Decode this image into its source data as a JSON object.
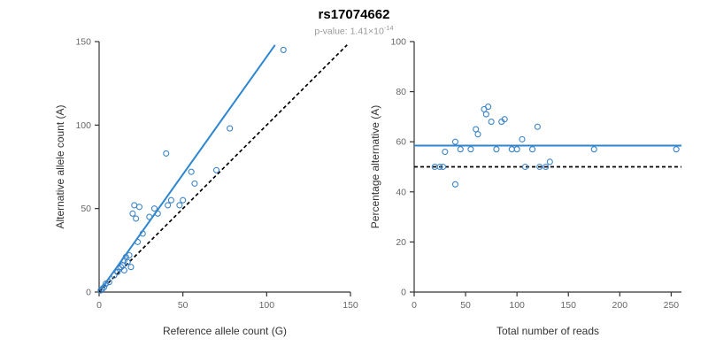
{
  "header": {
    "title": "rs17074662",
    "subtitle_base": "p-value: 1.41×10",
    "subtitle_exponent": "-14"
  },
  "colors": {
    "point": "#3d85c8",
    "fit_line": "#2e86d1",
    "identity_line": "#000000",
    "axis": "#333333",
    "tick_label": "#666666",
    "axis_title": "#333333"
  },
  "chart_data": [
    {
      "type": "scatter",
      "title": "rs17074662",
      "xlabel": "Reference allele count (G)",
      "ylabel": "Alternative allele count (A)",
      "xlim": [
        0,
        150
      ],
      "ylim": [
        0,
        150
      ],
      "xticks": [
        0,
        50,
        100,
        150
      ],
      "yticks": [
        0,
        50,
        100,
        150
      ],
      "grid": false,
      "points": [
        [
          1,
          1
        ],
        [
          2,
          2
        ],
        [
          3,
          3
        ],
        [
          4,
          5
        ],
        [
          6,
          6
        ],
        [
          9,
          10
        ],
        [
          11,
          12
        ],
        [
          12,
          14
        ],
        [
          13,
          15
        ],
        [
          14,
          16
        ],
        [
          15,
          13
        ],
        [
          15,
          19
        ],
        [
          16,
          21
        ],
        [
          17,
          18
        ],
        [
          18,
          22
        ],
        [
          19,
          15
        ],
        [
          20,
          47
        ],
        [
          21,
          52
        ],
        [
          22,
          44
        ],
        [
          23,
          30
        ],
        [
          24,
          51
        ],
        [
          26,
          35
        ],
        [
          30,
          45
        ],
        [
          33,
          50
        ],
        [
          35,
          47
        ],
        [
          40,
          83
        ],
        [
          41,
          52
        ],
        [
          43,
          55
        ],
        [
          48,
          52
        ],
        [
          50,
          55
        ],
        [
          55,
          72
        ],
        [
          57,
          65
        ],
        [
          70,
          73
        ],
        [
          78,
          98
        ],
        [
          110,
          145
        ]
      ],
      "lines": [
        {
          "name": "regression-line",
          "x1": 0,
          "y1": 0,
          "x2": 105,
          "y2": 148,
          "style": "solid",
          "color": "#2e86d1"
        },
        {
          "name": "identity-line",
          "x1": 0,
          "y1": 0,
          "x2": 148,
          "y2": 148,
          "style": "dashed",
          "color": "#000000"
        }
      ]
    },
    {
      "type": "scatter",
      "xlabel": "Total number of reads",
      "ylabel": "Percentage alternative (A)",
      "xlim": [
        0,
        260
      ],
      "ylim": [
        0,
        100
      ],
      "xticks": [
        0,
        50,
        100,
        150,
        200,
        250
      ],
      "yticks": [
        0,
        20,
        40,
        60,
        80,
        100
      ],
      "grid": false,
      "points": [
        [
          20,
          50
        ],
        [
          25,
          50
        ],
        [
          28,
          50
        ],
        [
          30,
          56
        ],
        [
          40,
          60
        ],
        [
          40,
          43
        ],
        [
          45,
          57
        ],
        [
          55,
          57
        ],
        [
          60,
          65
        ],
        [
          62,
          63
        ],
        [
          68,
          73
        ],
        [
          70,
          71
        ],
        [
          72,
          74
        ],
        [
          75,
          68
        ],
        [
          80,
          57
        ],
        [
          85,
          68
        ],
        [
          88,
          69
        ],
        [
          95,
          57
        ],
        [
          100,
          57
        ],
        [
          105,
          61
        ],
        [
          108,
          50
        ],
        [
          115,
          57
        ],
        [
          120,
          66
        ],
        [
          122,
          50
        ],
        [
          128,
          50
        ],
        [
          132,
          52
        ],
        [
          175,
          57
        ],
        [
          255,
          57
        ]
      ],
      "lines": [
        {
          "name": "mean-percentage-line",
          "x1": 0,
          "y1": 58.5,
          "x2": 260,
          "y2": 58.5,
          "style": "solid",
          "color": "#2e86d1"
        },
        {
          "name": "expected-50-line",
          "x1": 0,
          "y1": 50,
          "x2": 260,
          "y2": 50,
          "style": "dashed",
          "color": "#000000"
        }
      ]
    }
  ]
}
